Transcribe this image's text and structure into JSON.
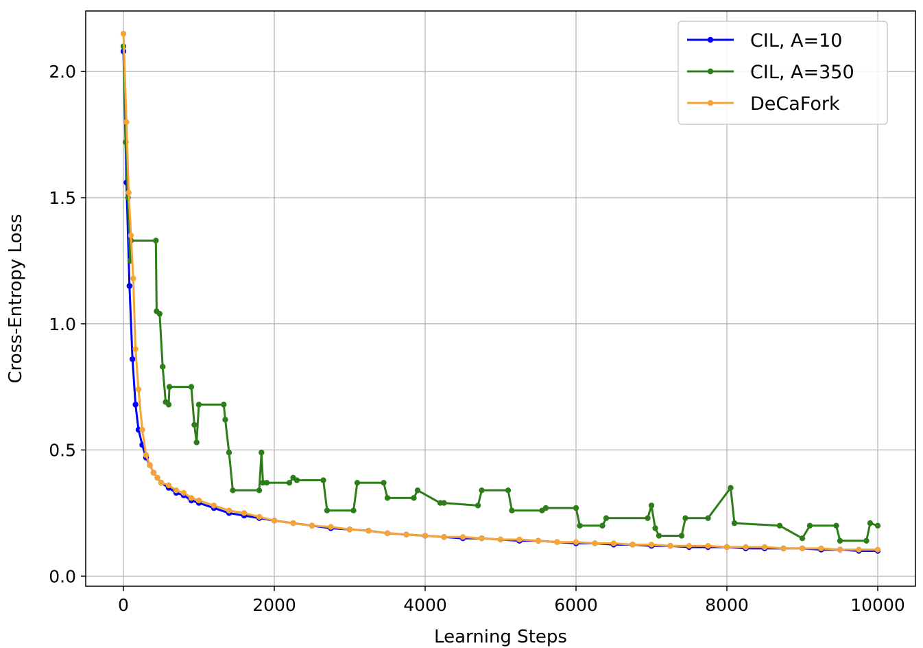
{
  "chart_data": {
    "type": "line",
    "title": "",
    "xlabel": "Learning Steps",
    "ylabel": "Cross-Entropy Loss",
    "xlim": [
      -500,
      10500
    ],
    "ylim": [
      -0.04,
      2.24
    ],
    "xticks": [
      0,
      2000,
      4000,
      6000,
      8000,
      10000
    ],
    "xtick_labels": [
      "0",
      "2000",
      "4000",
      "6000",
      "8000",
      "10000"
    ],
    "yticks": [
      0.0,
      0.5,
      1.0,
      1.5,
      2.0
    ],
    "ytick_labels": [
      "0.0",
      "0.5",
      "1.0",
      "1.5",
      "2.0"
    ],
    "grid": true,
    "legend_position": "top-right",
    "series": [
      {
        "name": "CIL, A=10",
        "color": "#0000ff",
        "x": [
          0,
          40,
          80,
          120,
          160,
          200,
          250,
          300,
          350,
          400,
          450,
          500,
          600,
          700,
          800,
          900,
          1000,
          1200,
          1400,
          1600,
          1800,
          2000,
          2250,
          2500,
          2750,
          3000,
          3250,
          3500,
          3750,
          4000,
          4250,
          4500,
          4750,
          5000,
          5250,
          5500,
          5750,
          6000,
          6250,
          6500,
          6750,
          7000,
          7250,
          7500,
          7750,
          8000,
          8250,
          8500,
          8750,
          9000,
          9250,
          9500,
          9750,
          10000
        ],
        "y": [
          2.08,
          1.56,
          1.15,
          0.86,
          0.68,
          0.58,
          0.52,
          0.47,
          0.44,
          0.41,
          0.39,
          0.37,
          0.35,
          0.33,
          0.32,
          0.3,
          0.29,
          0.27,
          0.25,
          0.24,
          0.23,
          0.22,
          0.21,
          0.2,
          0.19,
          0.185,
          0.18,
          0.17,
          0.165,
          0.16,
          0.155,
          0.15,
          0.15,
          0.145,
          0.14,
          0.14,
          0.135,
          0.13,
          0.13,
          0.125,
          0.125,
          0.12,
          0.12,
          0.115,
          0.115,
          0.115,
          0.11,
          0.11,
          0.11,
          0.11,
          0.105,
          0.105,
          0.1,
          0.1
        ]
      },
      {
        "name": "CIL, A=350",
        "color": "#2e7d1b",
        "x": [
          0,
          30,
          60,
          90,
          100,
          430,
          440,
          480,
          520,
          560,
          600,
          610,
          900,
          940,
          970,
          1000,
          1330,
          1350,
          1400,
          1450,
          1800,
          1830,
          1850,
          1900,
          2200,
          2250,
          2300,
          2650,
          2700,
          3050,
          3100,
          3450,
          3500,
          3850,
          3900,
          4200,
          4250,
          4700,
          4750,
          5100,
          5150,
          5550,
          5600,
          6000,
          6050,
          6350,
          6400,
          6950,
          7000,
          7050,
          7100,
          7400,
          7450,
          7750,
          8050,
          8100,
          8700,
          9000,
          9100,
          9450,
          9500,
          9850,
          9900,
          10000
        ],
        "y": [
          2.1,
          1.72,
          1.5,
          1.25,
          1.33,
          1.33,
          1.05,
          1.04,
          0.83,
          0.69,
          0.68,
          0.75,
          0.75,
          0.6,
          0.53,
          0.68,
          0.68,
          0.62,
          0.49,
          0.34,
          0.34,
          0.49,
          0.37,
          0.37,
          0.37,
          0.39,
          0.38,
          0.38,
          0.26,
          0.26,
          0.37,
          0.37,
          0.31,
          0.31,
          0.34,
          0.29,
          0.29,
          0.28,
          0.34,
          0.34,
          0.26,
          0.26,
          0.27,
          0.27,
          0.2,
          0.2,
          0.23,
          0.23,
          0.28,
          0.19,
          0.16,
          0.16,
          0.23,
          0.23,
          0.35,
          0.21,
          0.2,
          0.15,
          0.2,
          0.2,
          0.14,
          0.14,
          0.21,
          0.2
        ]
      },
      {
        "name": "DeCaFork",
        "color": "#f4a535",
        "x": [
          0,
          40,
          70,
          100,
          130,
          160,
          200,
          250,
          300,
          350,
          400,
          450,
          500,
          600,
          700,
          800,
          900,
          1000,
          1200,
          1400,
          1600,
          1800,
          2000,
          2250,
          2500,
          2750,
          3000,
          3250,
          3500,
          3750,
          4000,
          4250,
          4500,
          4750,
          5000,
          5250,
          5500,
          5750,
          6000,
          6250,
          6500,
          6750,
          7000,
          7250,
          7500,
          7750,
          8000,
          8250,
          8500,
          8750,
          9000,
          9250,
          9500,
          9750,
          10000
        ],
        "y": [
          2.15,
          1.8,
          1.52,
          1.35,
          1.18,
          0.9,
          0.74,
          0.58,
          0.48,
          0.44,
          0.41,
          0.39,
          0.37,
          0.36,
          0.34,
          0.33,
          0.31,
          0.3,
          0.28,
          0.26,
          0.25,
          0.235,
          0.22,
          0.21,
          0.2,
          0.195,
          0.185,
          0.18,
          0.17,
          0.165,
          0.16,
          0.155,
          0.155,
          0.15,
          0.145,
          0.145,
          0.14,
          0.135,
          0.135,
          0.13,
          0.13,
          0.125,
          0.125,
          0.12,
          0.12,
          0.12,
          0.115,
          0.115,
          0.115,
          0.11,
          0.11,
          0.11,
          0.105,
          0.105,
          0.105
        ]
      }
    ]
  }
}
